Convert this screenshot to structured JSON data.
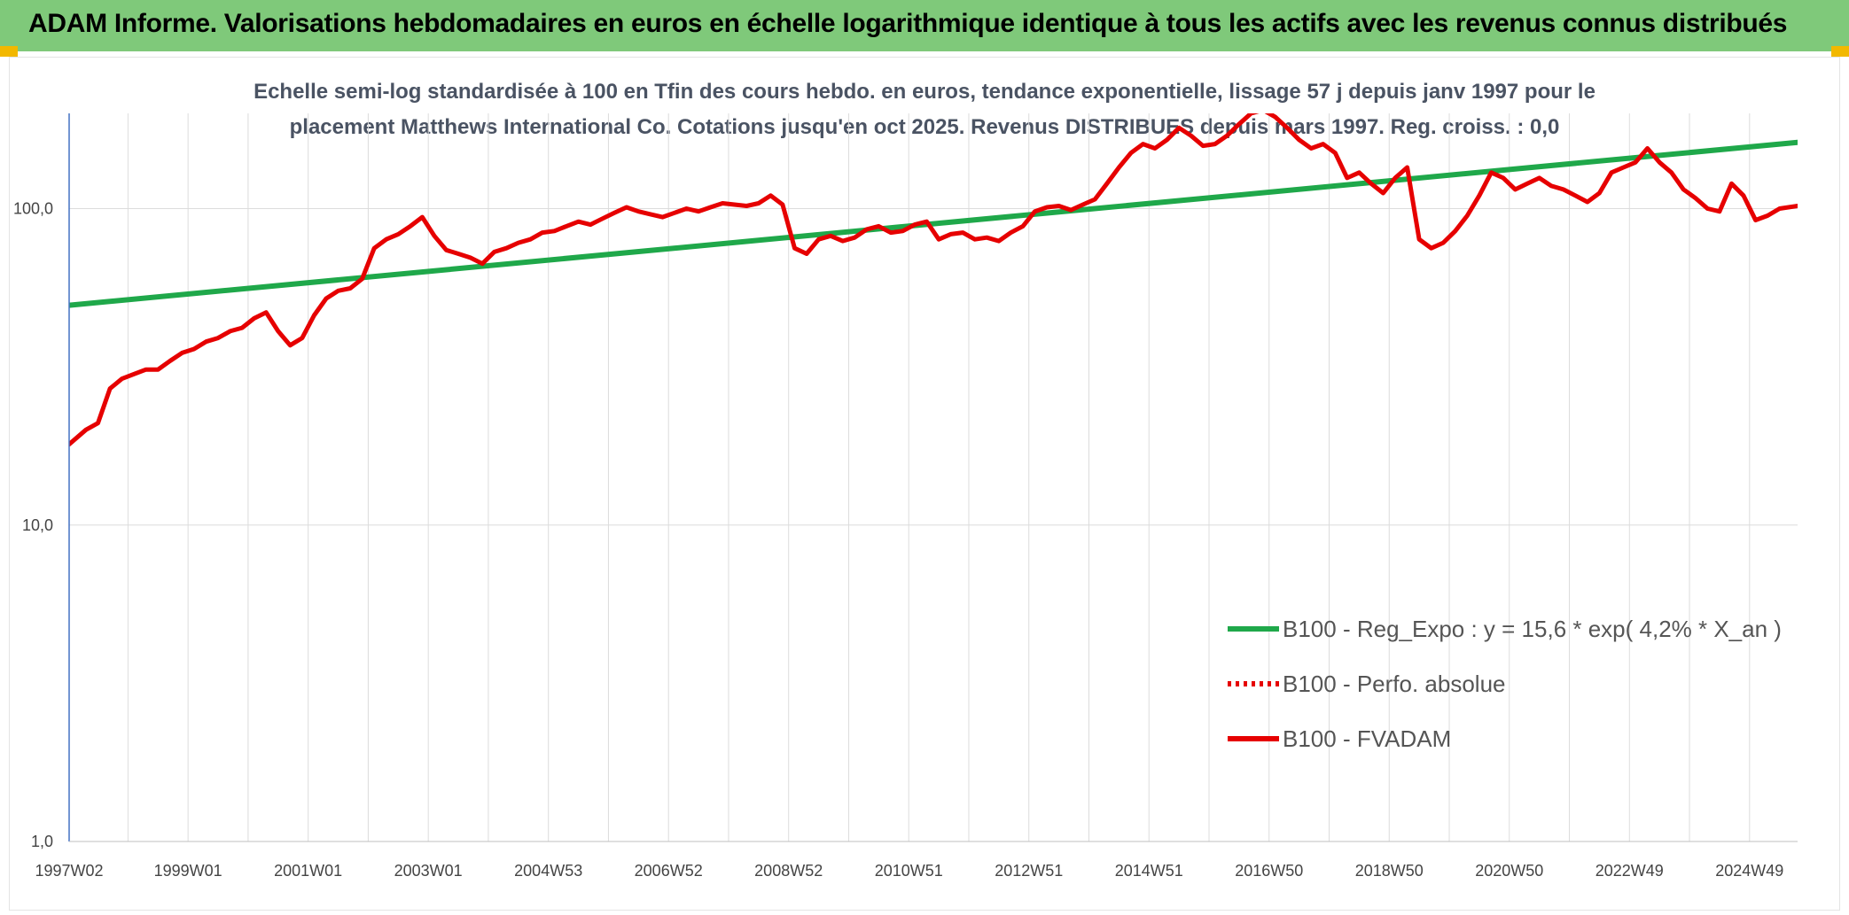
{
  "header": {
    "title": "ADAM Informe. Valorisations hebdomadaires en euros en échelle logarithmique identique à tous les actifs avec les revenus connus distribués"
  },
  "colors": {
    "banner": "#7fc97a",
    "corner": "#f2b800",
    "trend": "#1fa84a",
    "fvadam": "#e60000",
    "grid": "#dcdcdc",
    "axis": "#4472c4"
  },
  "chart_data": {
    "type": "line",
    "title_line1": "Echelle semi-log standardisée à 100 en Tfin des cours hebdo. en euros, tendance exponentielle, lissage 57 j depuis janv 1997 pour le",
    "title_line2": "placement Matthews International Co. Cotations jusqu'en oct 2025. Revenus DISTRIBUES depuis mars 1997. Reg. croiss. : 0,0",
    "y_scale": "log",
    "ylim": [
      1,
      200
    ],
    "xlim": [
      1997.02,
      2025.8
    ],
    "yticks": [
      {
        "value": 1,
        "label": "1,0"
      },
      {
        "value": 10,
        "label": "10,0"
      },
      {
        "value": 100,
        "label": "100,0"
      }
    ],
    "xticks": [
      {
        "x": 1997.02,
        "label": "1997W02"
      },
      {
        "x": 1999.0,
        "label": "1999W01"
      },
      {
        "x": 2001.0,
        "label": "2001W01"
      },
      {
        "x": 2003.0,
        "label": "2003W01"
      },
      {
        "x": 2005.0,
        "label": "2004W53"
      },
      {
        "x": 2007.0,
        "label": "2006W52"
      },
      {
        "x": 2009.0,
        "label": "2008W52"
      },
      {
        "x": 2011.0,
        "label": "2010W51"
      },
      {
        "x": 2013.0,
        "label": "2012W51"
      },
      {
        "x": 2015.0,
        "label": "2014W51"
      },
      {
        "x": 2017.0,
        "label": "2016W50"
      },
      {
        "x": 2019.0,
        "label": "2018W50"
      },
      {
        "x": 2021.0,
        "label": "2020W50"
      },
      {
        "x": 2023.0,
        "label": "2022W49"
      },
      {
        "x": 2025.0,
        "label": "2024W49"
      }
    ],
    "grid": true,
    "legend_position": "bottom-right",
    "series": [
      {
        "name": "B100 - Reg_Expo : y = 15,6 * exp( 4,2% *  X_an )",
        "style": "solid",
        "color": "#1fa84a",
        "x": [
          1997.02,
          2025.8
        ],
        "y": [
          49.5,
          162
        ]
      },
      {
        "name": "B100 - Perfo. absolue",
        "style": "dotted",
        "color": "#e60000",
        "x": [],
        "y": []
      },
      {
        "name": "B100 - FVADAM",
        "style": "solid",
        "color": "#e60000",
        "x": [
          1997.02,
          1997.3,
          1997.5,
          1997.7,
          1997.9,
          1998.1,
          1998.3,
          1998.5,
          1998.7,
          1998.9,
          1999.1,
          1999.3,
          1999.5,
          1999.7,
          1999.9,
          2000.1,
          2000.3,
          2000.5,
          2000.7,
          2000.9,
          2001.1,
          2001.3,
          2001.5,
          2001.7,
          2001.9,
          2002.1,
          2002.3,
          2002.5,
          2002.7,
          2002.9,
          2003.1,
          2003.3,
          2003.5,
          2003.7,
          2003.9,
          2004.1,
          2004.3,
          2004.5,
          2004.7,
          2004.9,
          2005.1,
          2005.3,
          2005.5,
          2005.7,
          2005.9,
          2006.1,
          2006.3,
          2006.5,
          2006.7,
          2006.9,
          2007.1,
          2007.3,
          2007.5,
          2007.7,
          2007.9,
          2008.1,
          2008.3,
          2008.5,
          2008.7,
          2008.9,
          2009.1,
          2009.3,
          2009.5,
          2009.7,
          2009.9,
          2010.1,
          2010.3,
          2010.5,
          2010.7,
          2010.9,
          2011.1,
          2011.3,
          2011.5,
          2011.7,
          2011.9,
          2012.1,
          2012.3,
          2012.5,
          2012.7,
          2012.9,
          2013.1,
          2013.3,
          2013.5,
          2013.7,
          2013.9,
          2014.1,
          2014.3,
          2014.5,
          2014.7,
          2014.9,
          2015.1,
          2015.3,
          2015.5,
          2015.7,
          2015.9,
          2016.1,
          2016.3,
          2016.5,
          2016.7,
          2016.9,
          2017.1,
          2017.3,
          2017.5,
          2017.7,
          2017.9,
          2018.1,
          2018.3,
          2018.5,
          2018.7,
          2018.9,
          2019.1,
          2019.3,
          2019.5,
          2019.7,
          2019.9,
          2020.1,
          2020.3,
          2020.5,
          2020.7,
          2020.9,
          2021.1,
          2021.3,
          2021.5,
          2021.7,
          2021.9,
          2022.1,
          2022.3,
          2022.5,
          2022.7,
          2022.9,
          2023.1,
          2023.3,
          2023.5,
          2023.7,
          2023.9,
          2024.1,
          2024.3,
          2024.5,
          2024.7,
          2024.9,
          2025.1,
          2025.3,
          2025.5,
          2025.8
        ],
        "y": [
          18,
          20,
          21,
          27,
          29,
          30,
          31,
          31,
          33,
          35,
          36,
          38,
          39,
          41,
          42,
          45,
          47,
          41,
          37,
          39,
          46,
          52,
          55,
          56,
          60,
          75,
          80,
          83,
          88,
          94,
          82,
          74,
          72,
          70,
          67,
          73,
          75,
          78,
          80,
          84,
          85,
          88,
          91,
          89,
          93,
          97,
          101,
          98,
          96,
          94,
          97,
          100,
          98,
          101,
          104,
          103,
          102,
          104,
          110,
          103,
          75,
          72,
          80,
          82,
          79,
          81,
          86,
          88,
          84,
          85,
          89,
          91,
          80,
          83,
          84,
          80,
          81,
          79,
          84,
          88,
          98,
          101,
          102,
          99,
          103,
          107,
          120,
          135,
          150,
          160,
          155,
          165,
          180,
          170,
          158,
          160,
          170,
          185,
          200,
          205,
          195,
          180,
          165,
          155,
          160,
          150,
          125,
          130,
          120,
          112,
          125,
          135,
          80,
          75,
          78,
          85,
          95,
          110,
          130,
          125,
          115,
          120,
          125,
          118,
          115,
          110,
          105,
          112,
          130,
          135,
          140,
          155,
          140,
          130,
          115,
          108,
          100,
          98,
          120,
          110,
          92,
          95,
          100,
          102
        ]
      }
    ]
  }
}
